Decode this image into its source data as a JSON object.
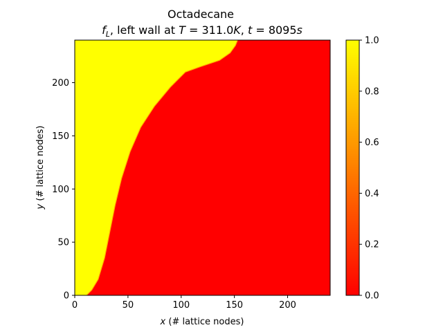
{
  "chart_data": {
    "type": "heatmap",
    "title_line1": "Octadecane",
    "title_line2": {
      "f": "f",
      "sub": "L",
      "mid": ", left wall at ",
      "T": "T",
      "Tval": " = 311.0",
      "K": "K",
      "comma": ", ",
      "t": "t",
      "tval": " = 8095",
      "s": "s"
    },
    "xlabel": {
      "var": "x",
      "rest": " (# lattice nodes)"
    },
    "ylabel": {
      "var": "y",
      "rest": " (# lattice nodes)"
    },
    "xlim": [
      0,
      240
    ],
    "ylim": [
      0,
      240
    ],
    "x_ticks": [
      0,
      50,
      100,
      150,
      200
    ],
    "y_ticks": [
      0,
      50,
      100,
      150,
      200
    ],
    "colorbar": {
      "range": [
        0,
        1
      ],
      "ticks": [
        "0.0",
        "0.2",
        "0.4",
        "0.6",
        "0.8",
        "1.0"
      ],
      "colormap": "autumn",
      "low_color": "#ff0000",
      "high_color": "#ffff00"
    },
    "liquid_value": 1.0,
    "solid_value": 0.0,
    "melt_front": [
      {
        "x": 11,
        "y": 0
      },
      {
        "x": 16,
        "y": 5
      },
      {
        "x": 22,
        "y": 15
      },
      {
        "x": 28,
        "y": 35
      },
      {
        "x": 33,
        "y": 60
      },
      {
        "x": 38,
        "y": 85
      },
      {
        "x": 44,
        "y": 110
      },
      {
        "x": 52,
        "y": 135
      },
      {
        "x": 62,
        "y": 158
      },
      {
        "x": 75,
        "y": 178
      },
      {
        "x": 90,
        "y": 196
      },
      {
        "x": 104,
        "y": 210
      },
      {
        "x": 118,
        "y": 215
      },
      {
        "x": 136,
        "y": 221
      },
      {
        "x": 146,
        "y": 228
      },
      {
        "x": 151,
        "y": 235
      },
      {
        "x": 153,
        "y": 240
      }
    ]
  }
}
